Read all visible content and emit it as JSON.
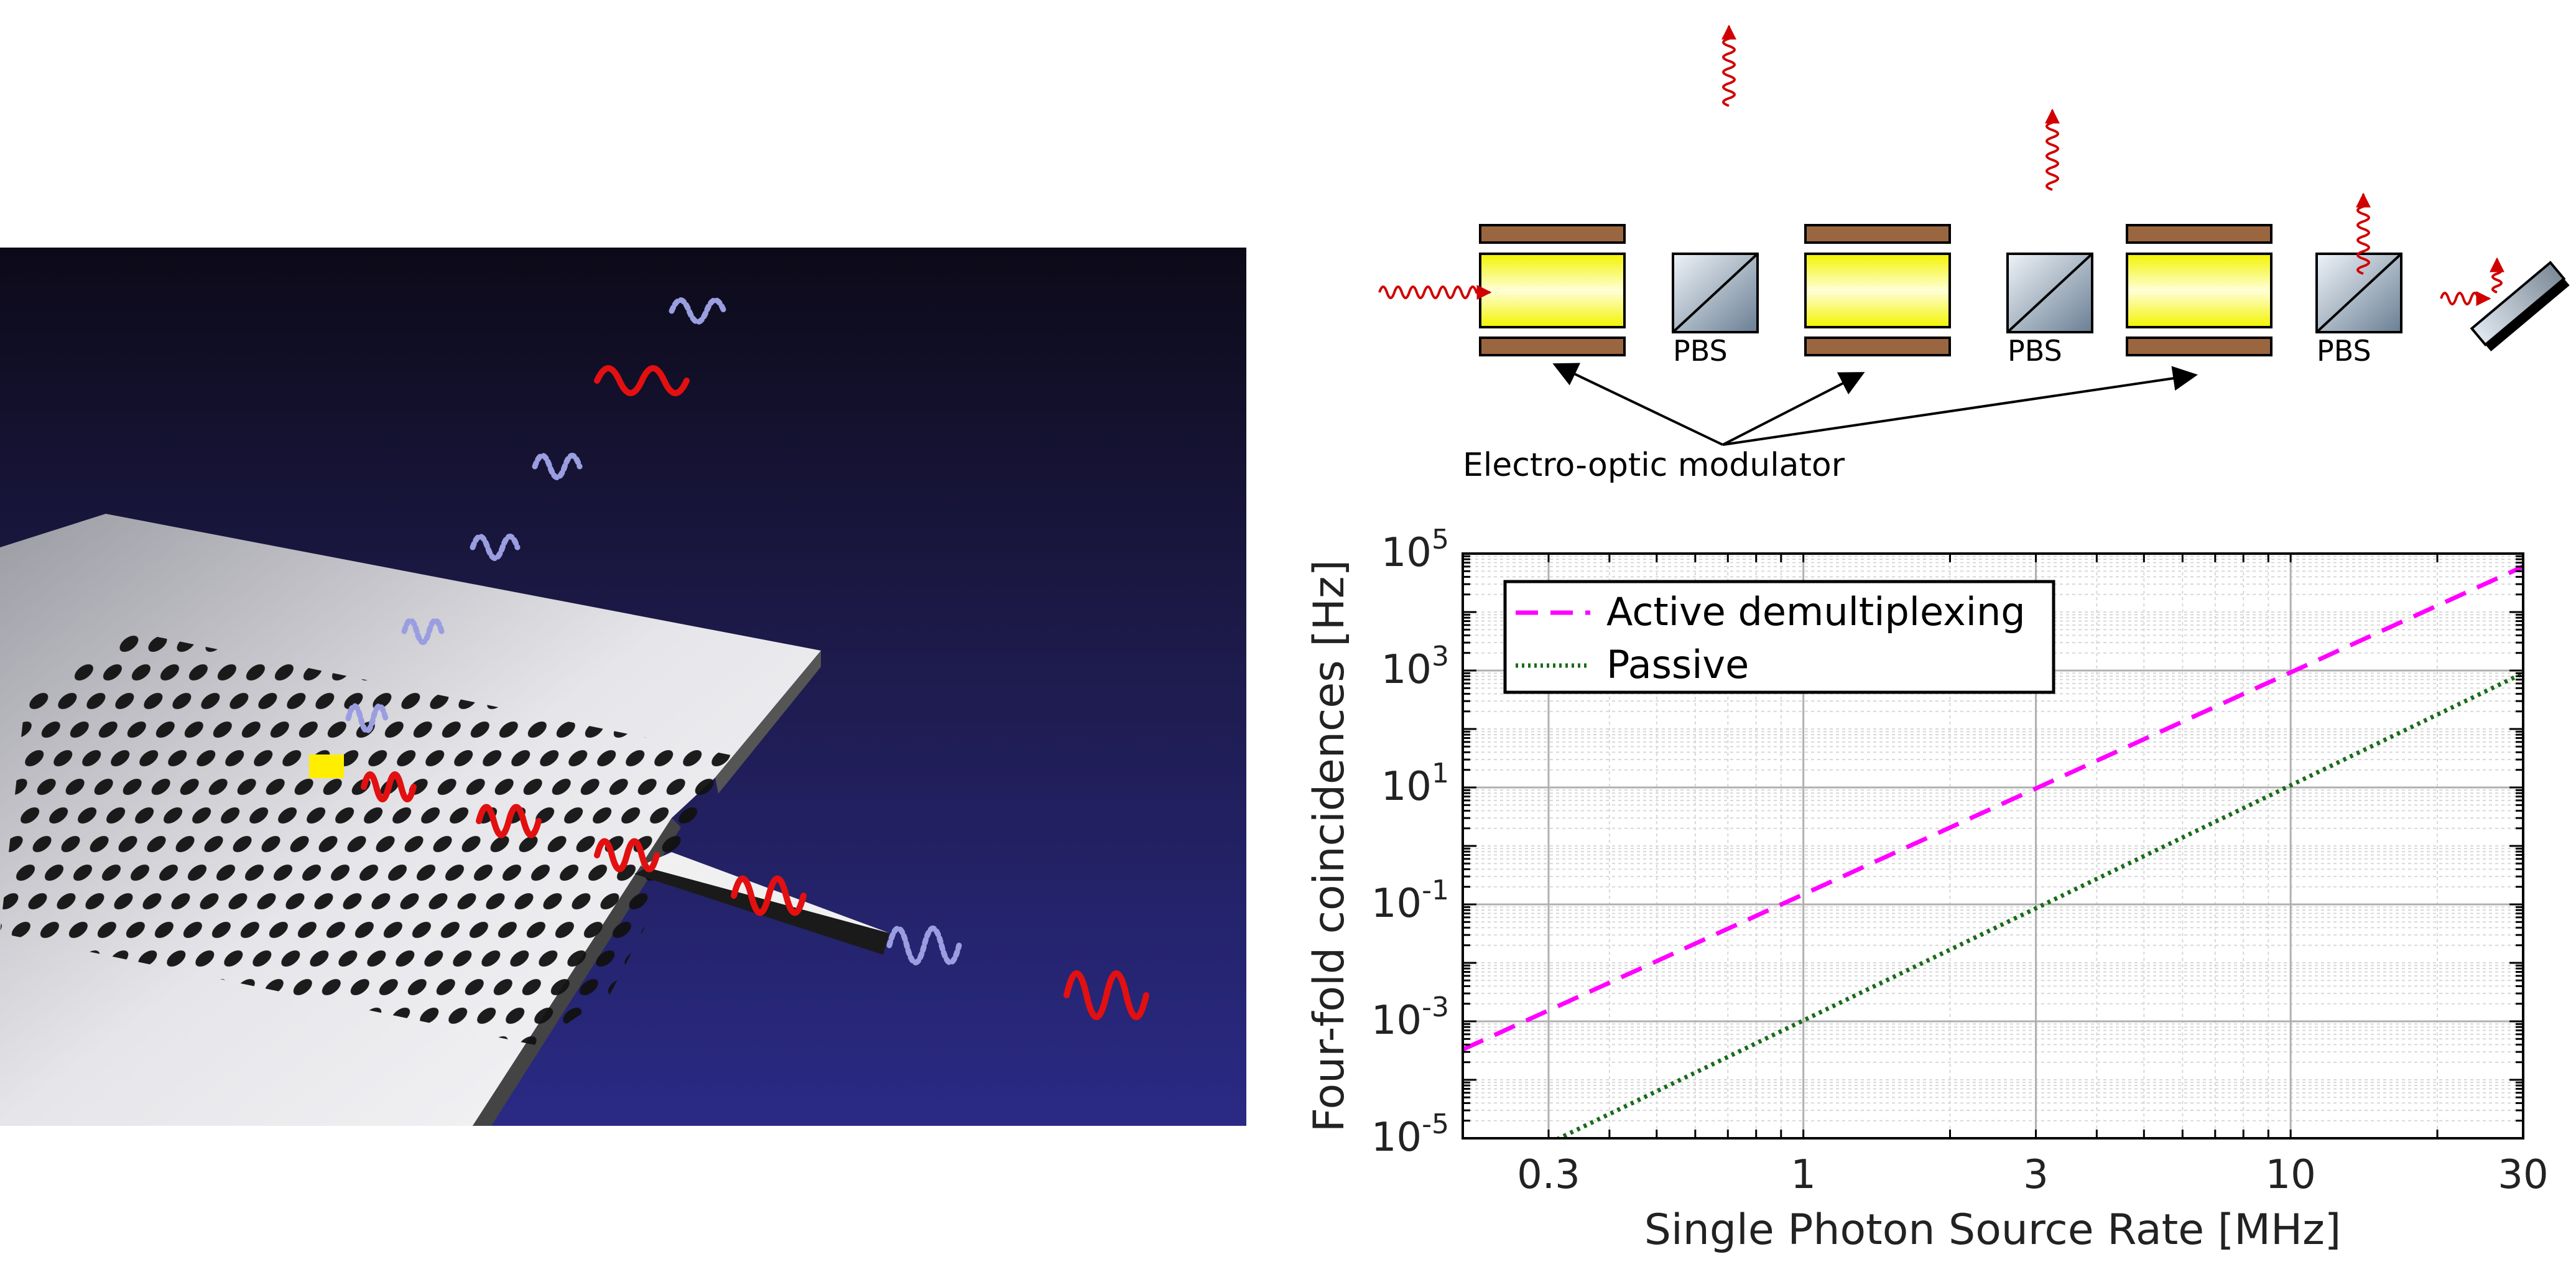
{
  "schematic": {
    "modulator_label": "Electro-optic modulator",
    "pbs_labels": [
      "PBS",
      "PBS",
      "PBS"
    ]
  },
  "chart_data": {
    "type": "line",
    "xscale": "log",
    "yscale": "log",
    "xlabel": "Single Photon Source Rate [MHz]",
    "ylabel": "Four-fold coincidences [Hz]",
    "xlim": [
      0.2,
      30
    ],
    "ylim": [
      1e-05,
      100000.0
    ],
    "xticks": [
      0.3,
      1,
      3,
      10,
      30
    ],
    "xtick_labels": [
      "0.3",
      "1",
      "3",
      "10",
      "30"
    ],
    "yticks": [
      1e-05,
      0.001,
      0.1,
      10.0,
      1000.0,
      100000.0
    ],
    "ytick_base": "10",
    "ytick_exponents": [
      "-5",
      "-3",
      "-1",
      "1",
      "3",
      "5"
    ],
    "grid": true,
    "legend_position": "top-left",
    "series": [
      {
        "name": "Active demultiplexing",
        "x": [
          0.2,
          30
        ],
        "y": [
          0.00033,
          60000
        ],
        "color": "#ff00ff",
        "style": "dashed"
      },
      {
        "name": "Passive",
        "x": [
          0.2,
          30
        ],
        "y": [
          1.6e-06,
          900
        ],
        "color": "#1a6b1a",
        "style": "dotted"
      }
    ]
  }
}
